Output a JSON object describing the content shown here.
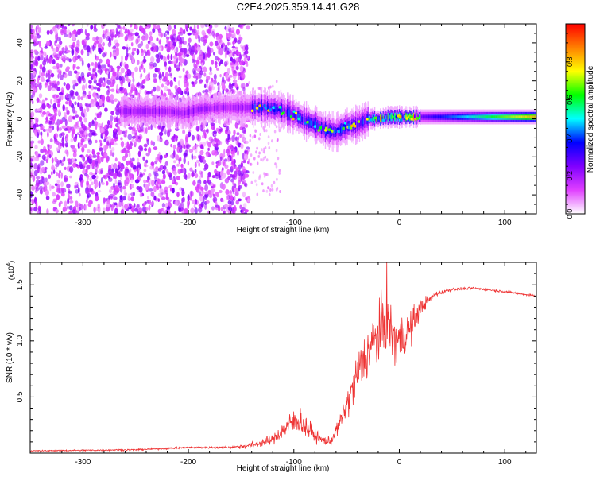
{
  "title": "C2E4.2025.359.14.41.G28",
  "chart_data": [
    {
      "type": "heatmap",
      "name": "spectrogram",
      "xlabel": "Height of straight line (km)",
      "ylabel": "Frequency (Hz)",
      "xlim": [
        -350,
        130
      ],
      "ylim": [
        -50,
        50
      ],
      "xticks": [
        -300,
        -200,
        -100,
        0,
        100
      ],
      "yticks": [
        -40,
        -20,
        0,
        20,
        40
      ],
      "noise_region_x": [
        -350,
        -143
      ],
      "ridge": {
        "x": [
          -265,
          -240,
          -220,
          -205,
          -190,
          -170,
          -150,
          -130,
          -115,
          -100,
          -90,
          -80,
          -70,
          -60,
          -50,
          -40,
          -30,
          -20,
          -10,
          0,
          20,
          50,
          80,
          110,
          130
        ],
        "freq": [
          4,
          4,
          4,
          3,
          5,
          6,
          6,
          6,
          5,
          2,
          -1,
          -3,
          -6,
          -7,
          -4,
          -3,
          0,
          0,
          1,
          1,
          1,
          1,
          1,
          1,
          1
        ]
      },
      "colorbar": {
        "label": "Normalized spectral amplitude",
        "range": [
          0,
          1
        ],
        "ticks": [
          "0.0",
          "0.2",
          "0.4",
          "0.6",
          "0.8"
        ],
        "colors": [
          "#ffffff",
          "#e040ff",
          "#8000ff",
          "#0000ff",
          "#00ffff",
          "#00ff00",
          "#ffff00",
          "#ff8000",
          "#ff0000"
        ]
      }
    },
    {
      "type": "line",
      "name": "snr",
      "xlabel": "Height of straight line (km)",
      "ylabel": "SNR (10 * v/v)",
      "y_multiplier": "(x10",
      "y_multiplier_exp": "4",
      "y_multiplier_close": ")",
      "xlim": [
        -350,
        130
      ],
      "ylim": [
        0,
        1.7
      ],
      "xticks": [
        -300,
        -200,
        -100,
        0,
        100
      ],
      "yticks": [
        "0.5",
        "1.0",
        "1.5"
      ],
      "color": "#ee3333",
      "profile": {
        "x": [
          -350,
          -250,
          -200,
          -160,
          -140,
          -120,
          -105,
          -95,
          -85,
          -75,
          -65,
          -55,
          -45,
          -38,
          -30,
          -20,
          -15,
          -10,
          -5,
          0,
          10,
          20,
          35,
          50,
          70,
          100,
          130
        ],
        "mean": [
          0.02,
          0.03,
          0.05,
          0.05,
          0.07,
          0.12,
          0.25,
          0.3,
          0.2,
          0.12,
          0.1,
          0.3,
          0.55,
          0.75,
          0.9,
          1.05,
          1.15,
          1.15,
          1.0,
          1.02,
          1.1,
          1.3,
          1.42,
          1.46,
          1.47,
          1.44,
          1.4
        ],
        "noise": [
          0.008,
          0.01,
          0.012,
          0.015,
          0.04,
          0.06,
          0.14,
          0.18,
          0.12,
          0.06,
          0.05,
          0.12,
          0.25,
          0.3,
          0.35,
          0.4,
          0.35,
          0.35,
          0.35,
          0.3,
          0.25,
          0.1,
          0.03,
          0.02,
          0.015,
          0.015,
          0.015
        ]
      },
      "spike_peak": {
        "x": -12,
        "y": 1.73
      }
    }
  ]
}
